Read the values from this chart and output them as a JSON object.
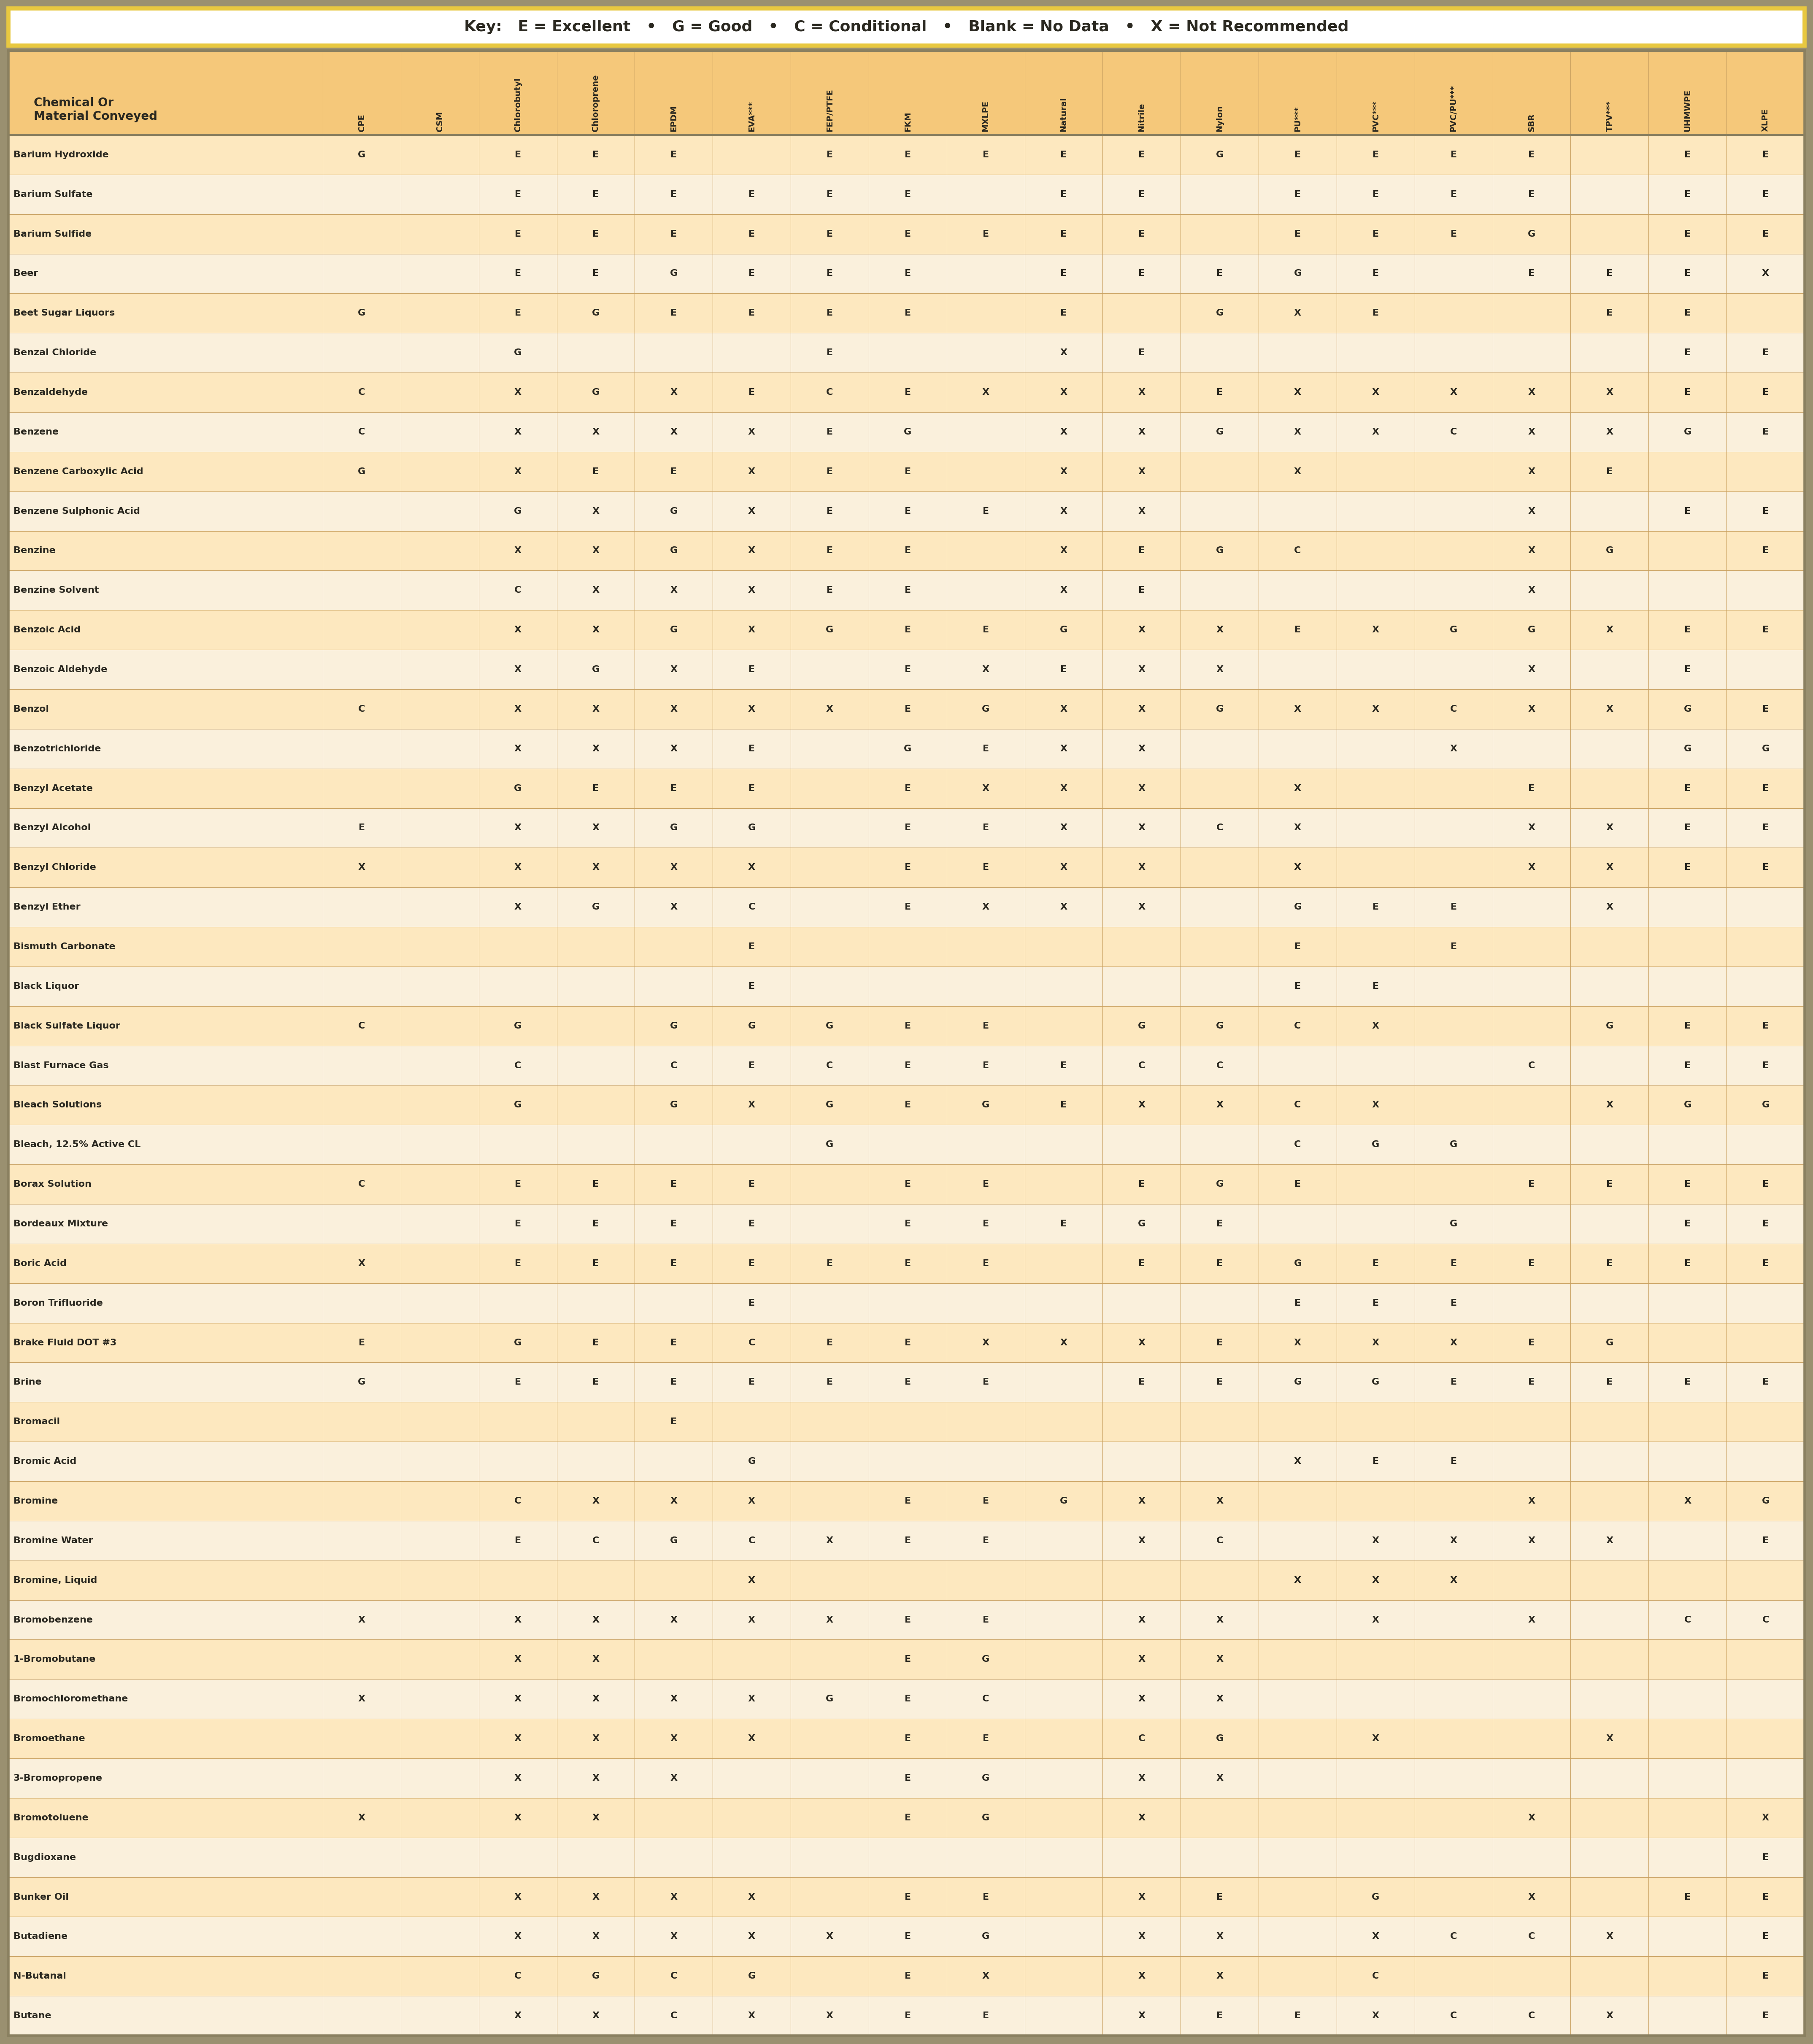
{
  "key_text": "Key:   E = Excellent   •   G = Good   •   C = Conditional   •   Blank = No Data   •   X = Not Recommended",
  "header_col": "Chemical Or\nMaterial Conveyed",
  "columns": [
    "CPE",
    "CSM",
    "Chlorobutyl",
    "Chloroprene",
    "EPDM",
    "EVA***",
    "FEP/PTFE",
    "FKM",
    "MXLPE",
    "Natural",
    "Nitrile",
    "Nylon",
    "PU***",
    "PVC***",
    "PVC/PU***",
    "SBR",
    "TPV***",
    "UHMWPE",
    "XLPE"
  ],
  "rows": [
    [
      "Barium Hydroxide",
      "G",
      "",
      "E",
      "E",
      "E",
      "",
      "E",
      "E",
      "E",
      "E",
      "E",
      "G",
      "E",
      "E",
      "E",
      "E",
      "",
      "E",
      "E"
    ],
    [
      "Barium Sulfate",
      "",
      "",
      "E",
      "E",
      "E",
      "E",
      "E",
      "E",
      "",
      "E",
      "E",
      "",
      "E",
      "E",
      "E",
      "E",
      "",
      "E",
      "E"
    ],
    [
      "Barium Sulfide",
      "",
      "",
      "E",
      "E",
      "E",
      "E",
      "E",
      "E",
      "E",
      "E",
      "E",
      "",
      "E",
      "E",
      "E",
      "G",
      "",
      "E",
      "E"
    ],
    [
      "Beer",
      "",
      "",
      "E",
      "E",
      "G",
      "E",
      "E",
      "E",
      "",
      "E",
      "E",
      "E",
      "G",
      "E",
      "",
      "E",
      "E",
      "E",
      "X"
    ],
    [
      "Beet Sugar Liquors",
      "G",
      "",
      "E",
      "G",
      "E",
      "E",
      "E",
      "E",
      "",
      "E",
      "",
      "G",
      "X",
      "E",
      "",
      "",
      "E",
      "E",
      ""
    ],
    [
      "Benzal Chloride",
      "",
      "",
      "G",
      "",
      "",
      "",
      "E",
      "",
      "",
      "X",
      "E",
      "",
      "",
      "",
      "",
      "",
      "",
      "E",
      "E"
    ],
    [
      "Benzaldehyde",
      "C",
      "",
      "X",
      "G",
      "X",
      "E",
      "C",
      "E",
      "X",
      "X",
      "X",
      "E",
      "X",
      "X",
      "X",
      "X",
      "X",
      "E",
      "E"
    ],
    [
      "Benzene",
      "C",
      "",
      "X",
      "X",
      "X",
      "X",
      "E",
      "G",
      "",
      "X",
      "X",
      "G",
      "X",
      "X",
      "C",
      "X",
      "X",
      "G",
      "E"
    ],
    [
      "Benzene Carboxylic Acid",
      "G",
      "",
      "X",
      "E",
      "E",
      "X",
      "E",
      "E",
      "",
      "X",
      "X",
      "",
      "X",
      "",
      "",
      "X",
      "E",
      "",
      ""
    ],
    [
      "Benzene Sulphonic Acid",
      "",
      "",
      "G",
      "X",
      "G",
      "X",
      "E",
      "E",
      "E",
      "X",
      "X",
      "",
      "",
      "",
      "",
      "X",
      "",
      "E",
      "E"
    ],
    [
      "Benzine",
      "",
      "",
      "X",
      "X",
      "G",
      "X",
      "E",
      "E",
      "",
      "X",
      "E",
      "G",
      "C",
      "",
      "",
      "X",
      "G",
      "",
      "E"
    ],
    [
      "Benzine Solvent",
      "",
      "",
      "C",
      "X",
      "X",
      "X",
      "E",
      "E",
      "",
      "X",
      "E",
      "",
      "",
      "",
      "",
      "X",
      "",
      "",
      ""
    ],
    [
      "Benzoic Acid",
      "",
      "",
      "X",
      "X",
      "G",
      "X",
      "G",
      "E",
      "E",
      "G",
      "X",
      "X",
      "E",
      "X",
      "G",
      "G",
      "X",
      "E",
      "E",
      "E"
    ],
    [
      "Benzoic Aldehyde",
      "",
      "",
      "X",
      "G",
      "X",
      "E",
      "",
      "E",
      "X",
      "E",
      "X",
      "X",
      "",
      "",
      "",
      "X",
      "",
      "E",
      ""
    ],
    [
      "Benzol",
      "C",
      "",
      "X",
      "X",
      "X",
      "X",
      "X",
      "E",
      "G",
      "X",
      "X",
      "G",
      "X",
      "X",
      "C",
      "X",
      "X",
      "G",
      "E"
    ],
    [
      "Benzotrichloride",
      "",
      "",
      "X",
      "X",
      "X",
      "E",
      "",
      "G",
      "E",
      "X",
      "X",
      "",
      "",
      "",
      "X",
      "",
      "",
      "G",
      "G"
    ],
    [
      "Benzyl Acetate",
      "",
      "",
      "G",
      "E",
      "E",
      "E",
      "",
      "E",
      "X",
      "X",
      "X",
      "",
      "X",
      "",
      "",
      "E",
      "",
      "E",
      "E"
    ],
    [
      "Benzyl Alcohol",
      "E",
      "",
      "X",
      "X",
      "G",
      "G",
      "",
      "E",
      "E",
      "X",
      "X",
      "C",
      "X",
      "",
      "",
      "X",
      "X",
      "E",
      "E"
    ],
    [
      "Benzyl Chloride",
      "X",
      "",
      "X",
      "X",
      "X",
      "X",
      "",
      "E",
      "E",
      "X",
      "X",
      "",
      "X",
      "",
      "",
      "X",
      "X",
      "E",
      "E"
    ],
    [
      "Benzyl Ether",
      "",
      "",
      "X",
      "G",
      "X",
      "C",
      "",
      "E",
      "X",
      "X",
      "X",
      "",
      "G",
      "E",
      "E",
      "",
      "X",
      "",
      ""
    ],
    [
      "Bismuth Carbonate",
      "",
      "",
      "",
      "",
      "",
      "E",
      "",
      "",
      "",
      "",
      "",
      "",
      "E",
      "",
      "E",
      "",
      "",
      "",
      ""
    ],
    [
      "Black Liquor",
      "",
      "",
      "",
      "",
      "",
      "E",
      "",
      "",
      "",
      "",
      "",
      "",
      "E",
      "E",
      "",
      "",
      "",
      "",
      ""
    ],
    [
      "Black Sulfate Liquor",
      "C",
      "",
      "G",
      "",
      "G",
      "G",
      "G",
      "E",
      "E",
      "",
      "G",
      "G",
      "C",
      "X",
      "",
      "",
      "G",
      "E",
      "E"
    ],
    [
      "Blast Furnace Gas",
      "",
      "",
      "C",
      "",
      "C",
      "E",
      "C",
      "E",
      "E",
      "E",
      "C",
      "C",
      "",
      "",
      "",
      "C",
      "",
      "E",
      "E"
    ],
    [
      "Bleach Solutions",
      "",
      "",
      "G",
      "",
      "G",
      "X",
      "G",
      "E",
      "G",
      "E",
      "X",
      "X",
      "C",
      "X",
      "",
      "",
      "X",
      "G",
      "G"
    ],
    [
      "Bleach, 12.5% Active CL",
      "",
      "",
      "",
      "",
      "",
      "",
      "G",
      "",
      "",
      "",
      "",
      "",
      "C",
      "G",
      "G",
      "",
      "",
      "",
      ""
    ],
    [
      "Borax Solution",
      "C",
      "",
      "E",
      "E",
      "E",
      "E",
      "",
      "E",
      "E",
      "",
      "E",
      "G",
      "E",
      "",
      "",
      "E",
      "E",
      "E",
      "E"
    ],
    [
      "Bordeaux Mixture",
      "",
      "",
      "E",
      "E",
      "E",
      "E",
      "",
      "E",
      "E",
      "E",
      "G",
      "E",
      "",
      "",
      "G",
      "",
      "",
      "E",
      "E"
    ],
    [
      "Boric Acid",
      "X",
      "",
      "E",
      "E",
      "E",
      "E",
      "E",
      "E",
      "E",
      "",
      "E",
      "E",
      "G",
      "E",
      "E",
      "E",
      "E",
      "E",
      "E"
    ],
    [
      "Boron Trifluoride",
      "",
      "",
      "",
      "",
      "",
      "E",
      "",
      "",
      "",
      "",
      "",
      "",
      "E",
      "E",
      "E",
      "",
      "",
      "",
      ""
    ],
    [
      "Brake Fluid DOT #3",
      "E",
      "",
      "G",
      "E",
      "E",
      "C",
      "E",
      "E",
      "X",
      "X",
      "X",
      "E",
      "X",
      "X",
      "X",
      "E",
      "G",
      "",
      ""
    ],
    [
      "Brine",
      "G",
      "",
      "E",
      "E",
      "E",
      "E",
      "E",
      "E",
      "E",
      "",
      "E",
      "E",
      "G",
      "G",
      "E",
      "E",
      "E",
      "E",
      "E"
    ],
    [
      "Bromacil",
      "",
      "",
      "",
      "",
      "E",
      "",
      "",
      "",
      "",
      "",
      "",
      "",
      "",
      "",
      "",
      "",
      "",
      "",
      ""
    ],
    [
      "Bromic Acid",
      "",
      "",
      "",
      "",
      "",
      "G",
      "",
      "",
      "",
      "",
      "",
      "",
      "X",
      "E",
      "E",
      "",
      "",
      "",
      ""
    ],
    [
      "Bromine",
      "",
      "",
      "C",
      "X",
      "X",
      "X",
      "",
      "E",
      "E",
      "G",
      "X",
      "X",
      "",
      "",
      "",
      "X",
      "",
      "X",
      "G"
    ],
    [
      "Bromine Water",
      "",
      "",
      "E",
      "C",
      "G",
      "C",
      "X",
      "E",
      "E",
      "",
      "X",
      "C",
      "",
      "X",
      "X",
      "X",
      "X",
      "",
      "E",
      "E"
    ],
    [
      "Bromine, Liquid",
      "",
      "",
      "",
      "",
      "",
      "X",
      "",
      "",
      "",
      "",
      "",
      "",
      "X",
      "X",
      "X",
      "",
      "",
      "",
      ""
    ],
    [
      "Bromobenzene",
      "X",
      "",
      "X",
      "X",
      "X",
      "X",
      "X",
      "E",
      "E",
      "",
      "X",
      "X",
      "",
      "X",
      "",
      "X",
      "",
      "C",
      "C"
    ],
    [
      "1-Bromobutane",
      "",
      "",
      "X",
      "X",
      "",
      "",
      "",
      "E",
      "G",
      "",
      "X",
      "X",
      "",
      "",
      "",
      "",
      "",
      "",
      ""
    ],
    [
      "Bromochloromethane",
      "X",
      "",
      "X",
      "X",
      "X",
      "X",
      "G",
      "E",
      "C",
      "",
      "X",
      "X",
      "",
      "",
      "",
      "",
      "",
      "",
      ""
    ],
    [
      "Bromoethane",
      "",
      "",
      "X",
      "X",
      "X",
      "X",
      "",
      "E",
      "E",
      "",
      "C",
      "G",
      "",
      "X",
      "",
      "",
      "X",
      "",
      "",
      ""
    ],
    [
      "3-Bromopropene",
      "",
      "",
      "X",
      "X",
      "X",
      "",
      "",
      "E",
      "G",
      "",
      "X",
      "X",
      "",
      "",
      "",
      "",
      "",
      "",
      ""
    ],
    [
      "Bromotoluene",
      "X",
      "",
      "X",
      "X",
      "",
      "",
      "",
      "E",
      "G",
      "",
      "X",
      "",
      "",
      "",
      "",
      "X",
      "",
      "",
      "X"
    ],
    [
      "Bugdioxane",
      "",
      "",
      "",
      "",
      "",
      "",
      "",
      "",
      "",
      "",
      "",
      "",
      "",
      "",
      "",
      "",
      "",
      "",
      "E"
    ],
    [
      "Bunker Oil",
      "",
      "",
      "X",
      "X",
      "X",
      "X",
      "",
      "E",
      "E",
      "",
      "X",
      "E",
      "",
      "G",
      "",
      "X",
      "",
      "E",
      "E"
    ],
    [
      "Butadiene",
      "",
      "",
      "X",
      "X",
      "X",
      "X",
      "X",
      "E",
      "G",
      "",
      "X",
      "X",
      "",
      "X",
      "C",
      "C",
      "X",
      "",
      "E",
      "E"
    ],
    [
      "N-Butanal",
      "",
      "",
      "C",
      "G",
      "C",
      "G",
      "",
      "E",
      "X",
      "",
      "X",
      "X",
      "",
      "C",
      "",
      "",
      "",
      "",
      "E",
      ""
    ],
    [
      "Butane",
      "",
      "",
      "X",
      "X",
      "C",
      "X",
      "X",
      "E",
      "E",
      "",
      "X",
      "E",
      "E",
      "X",
      "C",
      "C",
      "X",
      "",
      "E",
      "E"
    ]
  ],
  "bg_key": "#ffffff",
  "border_key_color": "#e8c840",
  "bg_header": "#f5c87a",
  "bg_row_odd": "#fde8bf",
  "bg_row_even": "#faf0dc",
  "outer_bg": "#9a9070",
  "grid_color": "#c8a060",
  "header_sep_color": "#8a8060",
  "text_color": "#2a2820"
}
